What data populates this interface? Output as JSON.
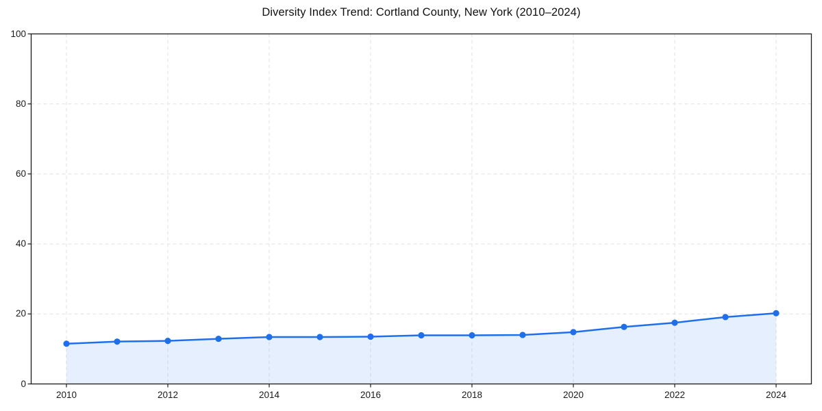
{
  "chart_data": {
    "type": "line",
    "title": "Diversity Index Trend: Cortland County, New York (2010–2024)",
    "x": [
      2010,
      2011,
      2012,
      2013,
      2014,
      2015,
      2016,
      2017,
      2018,
      2019,
      2020,
      2021,
      2022,
      2023,
      2024
    ],
    "series": [
      {
        "name": "Diversity Index",
        "values": [
          11.5,
          12.1,
          12.3,
          12.9,
          13.4,
          13.4,
          13.5,
          13.9,
          13.9,
          14.0,
          14.8,
          16.3,
          17.5,
          19.1,
          20.2
        ]
      }
    ],
    "xlabel": "",
    "ylabel": "",
    "ylim": [
      0,
      100
    ],
    "yticks": [
      0,
      20,
      40,
      60,
      80,
      100
    ],
    "xticks": [
      2010,
      2012,
      2014,
      2016,
      2018,
      2020,
      2022,
      2024
    ],
    "grid": true,
    "grid_style": "dashed",
    "area_fill": true,
    "markers": true,
    "colors": {
      "line": "#1f6feb",
      "fill_opacity": 0.11,
      "grid": "#e1e1e1",
      "spine": "#1a1a1a",
      "text": "#1a1a1a",
      "background": "#ffffff"
    }
  }
}
